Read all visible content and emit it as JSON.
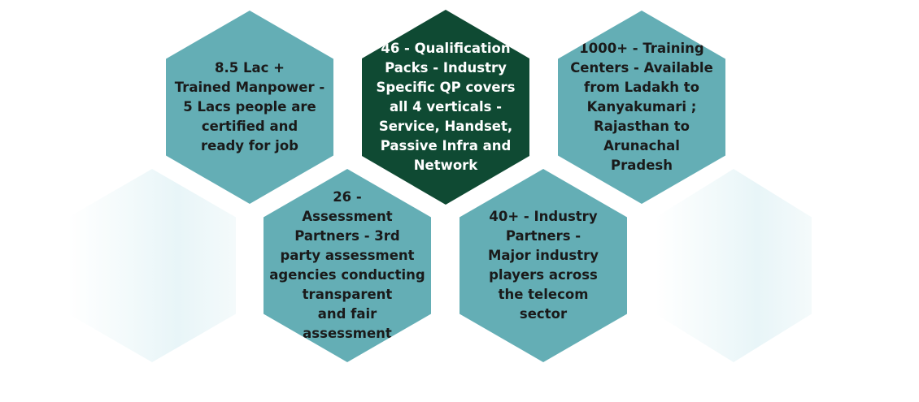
{
  "hexagons": [
    {
      "id": "trained-manpower",
      "text": "8.5 Lac +\nTrained Manpower -\n5 Lacs people are\ncertified and\nready for job"
    },
    {
      "id": "qualification-packs",
      "text": "46 - Qualification\nPacks - Industry\nSpecific QP covers\nall 4 verticals -\nService, Handset,\nPassive Infra and\nNetwork"
    },
    {
      "id": "training-centers",
      "text": "1000+ - Training\nCenters - Available\nfrom Ladakh to\nKanyakumari ;\nRajasthan to\nArunachal\nPradesh"
    },
    {
      "id": "assessment-partners",
      "text": "26 -\nAssessment\nPartners - 3rd\nparty assessment\nagencies conducting\ntransparent\nand fair\nassessment"
    },
    {
      "id": "industry-partners",
      "text": "40+ - Industry\nPartners -\nMajor industry\nplayers across\nthe telecom\nsector"
    }
  ],
  "colors": {
    "teal": "#64aeb5",
    "dark_green": "#0f4a33",
    "faint": "#e8f5f8",
    "text_dark": "#1a1a1a",
    "text_light": "#ffffff"
  }
}
